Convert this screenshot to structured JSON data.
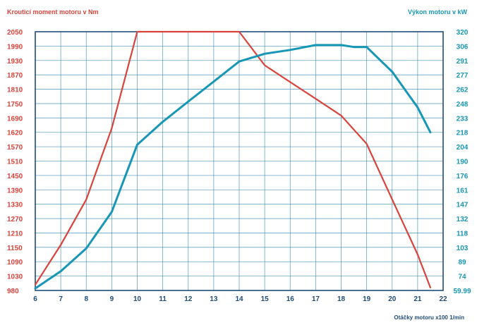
{
  "chart_data": {
    "type": "line",
    "title_left": "Krouticí moment motoru v Nm",
    "title_right": "Výkon motoru v kW",
    "xlabel": "Otáčky motoru x100 1/min",
    "colors": {
      "torque": "#d8443c",
      "power": "#1797b5",
      "grid": "#2a7fa8"
    },
    "x_ticks": [
      "6",
      "7",
      "8",
      "9",
      "10",
      "11",
      "12",
      "13",
      "14",
      "15",
      "16",
      "17",
      "18",
      "19",
      "20",
      "21",
      "22"
    ],
    "y_left_ticks": [
      "2050",
      "1990",
      "1930",
      "1870",
      "1810",
      "1750",
      "1690",
      "1620",
      "1570",
      "1510",
      "1450",
      "1390",
      "1330",
      "1270",
      "1210",
      "1150",
      "1090",
      "1030",
      "980"
    ],
    "y_right_ticks": [
      "320",
      "306",
      "291",
      "277",
      "262",
      "248",
      "233",
      "218",
      "204",
      "190",
      "176",
      "161",
      "147",
      "132",
      "118",
      "103",
      "89",
      "74",
      "59.99"
    ],
    "series": [
      {
        "key": "torque",
        "x": [
          6,
          7,
          8,
          9,
          10,
          11,
          12,
          13,
          14,
          15,
          16,
          17,
          18,
          19,
          20,
          21,
          21.5
        ],
        "y": [
          1000,
          1160,
          1350,
          1640,
          2050,
          2050,
          2050,
          2050,
          2050,
          1910,
          1840,
          1770,
          1700,
          1580,
          1350,
          1120,
          990
        ]
      },
      {
        "key": "power",
        "x": [
          6,
          7,
          8,
          9,
          10,
          11,
          12,
          13,
          14,
          15,
          16,
          17,
          18,
          18.5,
          19,
          20,
          21,
          21.5
        ],
        "y": [
          62,
          79,
          102,
          139,
          206,
          229,
          250,
          270,
          290,
          298,
          302,
          307,
          307,
          305,
          305,
          280,
          244,
          218
        ]
      }
    ]
  }
}
